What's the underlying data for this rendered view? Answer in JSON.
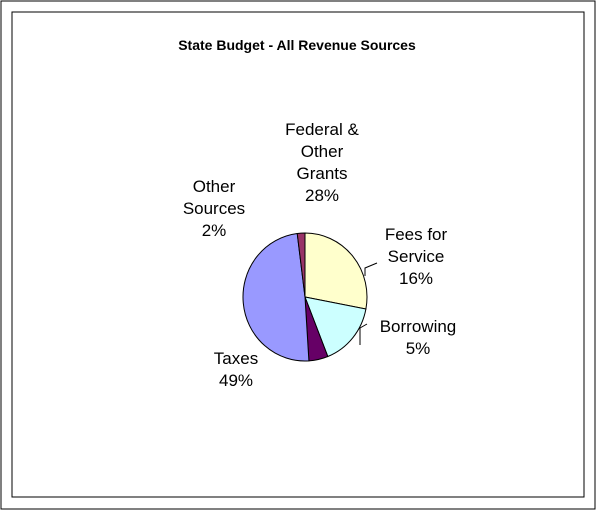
{
  "chart_data": {
    "type": "pie",
    "title": "State Budget - All Revenue Sources",
    "slices": [
      {
        "label": "Federal & Other Grants",
        "value": 28,
        "color": "#ffffcc"
      },
      {
        "label": "Fees for Service",
        "value": 16,
        "color": "#ccffff"
      },
      {
        "label": "Borrowing",
        "value": 5,
        "color": "#660066"
      },
      {
        "label": "Taxes",
        "value": 49,
        "color": "#9999ff"
      },
      {
        "label": "Other Sources",
        "value": 2,
        "color": "#993366"
      }
    ],
    "legend": "none",
    "data_labels": "category name and percent"
  },
  "labels": {
    "federal": {
      "lines": [
        "Federal &",
        "Other",
        "Grants"
      ],
      "pct": "28%"
    },
    "fees": {
      "lines": [
        "Fees for",
        "Service"
      ],
      "pct": "16%"
    },
    "borrowing": {
      "lines": [
        "Borrowing"
      ],
      "pct": "5%"
    },
    "taxes": {
      "lines": [
        "Taxes"
      ],
      "pct": "49%"
    },
    "other": {
      "lines": [
        "Other",
        "Sources"
      ],
      "pct": "2%"
    }
  }
}
